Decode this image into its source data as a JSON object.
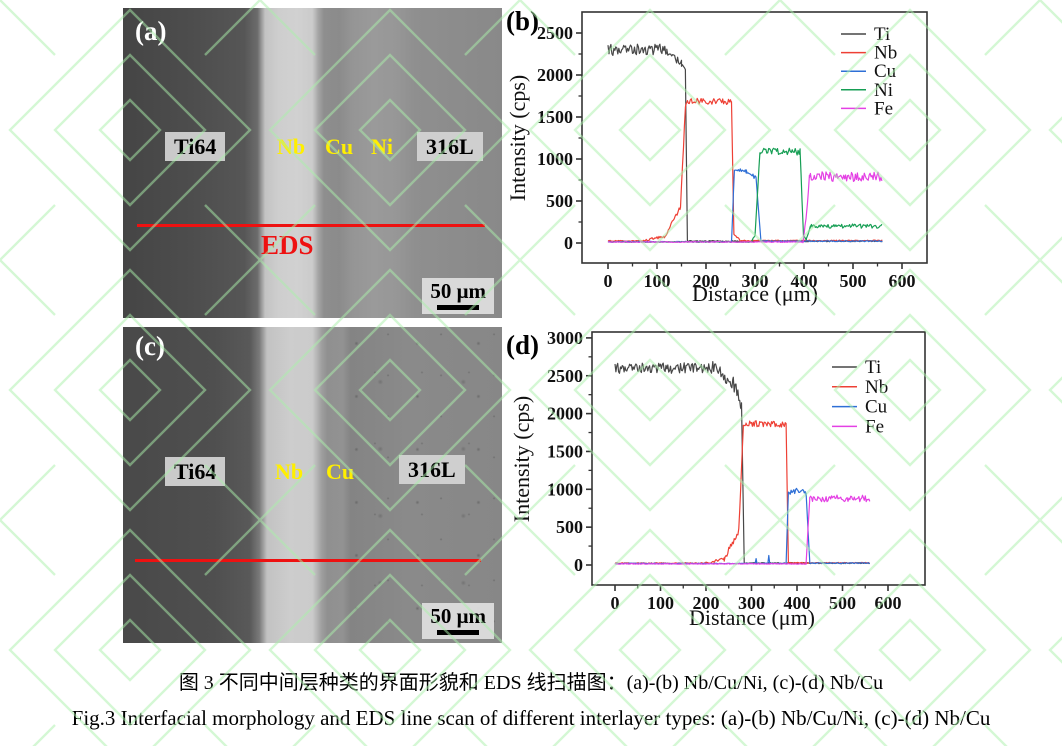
{
  "figure": {
    "panels": {
      "a": {
        "letter": "(a)",
        "region_labels": [
          "Ti64",
          "Nb",
          "Cu",
          "Ni",
          "316L"
        ],
        "eds_label": "EDS",
        "scale_label": "50 μm"
      },
      "c": {
        "letter": "(c)",
        "region_labels": [
          "Ti64",
          "Nb",
          "Cu",
          "316L"
        ],
        "scale_label": "50 μm"
      }
    },
    "captions": {
      "zh": "图 3 不同中间层种类的界面形貌和 EDS 线扫描图：(a)-(b) Nb/Cu/Ni, (c)-(d) Nb/Cu",
      "en": "Fig.3 Interfacial morphology and EDS line scan of different interlayer types: (a)-(b) Nb/Cu/Ni, (c)-(d) Nb/Cu"
    },
    "colors": {
      "eds_line": "#ee1111",
      "layer_label": "#ffef00",
      "watermark": "#abf0ab",
      "axis": "#333333"
    }
  },
  "chart_data": [
    {
      "panel_label": "(b)",
      "type": "line",
      "xlabel": "Distance (μm)",
      "ylabel": "Intensity (cps)",
      "xlim": [
        0,
        600
      ],
      "ylim": [
        0,
        2500
      ],
      "grid": false,
      "legend_position": "top-right",
      "xticks": [
        0,
        100,
        200,
        300,
        400,
        500,
        600
      ],
      "xticks_minor": [
        50,
        150,
        250,
        350,
        450,
        550
      ],
      "yticks": [
        0,
        500,
        1000,
        1500,
        2000,
        2500
      ],
      "yticks_minor": [
        250,
        750,
        1250,
        1750,
        2250
      ],
      "series": [
        {
          "name": "Ti",
          "color": "#474747",
          "segments": [
            [
              0,
              120,
              2300,
              2300,
              70
            ],
            [
              120,
              150,
              2290,
              2130,
              45
            ],
            [
              150,
              158,
              2130,
              2040,
              30
            ],
            [
              158,
              162,
              2040,
              25,
              5
            ],
            [
              162,
              560,
              22,
              22,
              7
            ]
          ]
        },
        {
          "name": "Nb",
          "color": "#ee4035",
          "segments": [
            [
              0,
              70,
              25,
              25,
              6
            ],
            [
              70,
              115,
              25,
              80,
              14
            ],
            [
              115,
              148,
              80,
              430,
              30
            ],
            [
              148,
              158,
              430,
              1620,
              20
            ],
            [
              158,
              162,
              1620,
              1690,
              15
            ],
            [
              162,
              252,
              1690,
              1680,
              35
            ],
            [
              252,
              257,
              1680,
              110,
              10
            ],
            [
              257,
              270,
              110,
              30,
              8
            ],
            [
              270,
              560,
              28,
              28,
              7
            ]
          ]
        },
        {
          "name": "Cu",
          "color": "#2e6fd6",
          "segments": [
            [
              0,
              252,
              15,
              15,
              5
            ],
            [
              252,
              258,
              15,
              870,
              10
            ],
            [
              258,
              282,
              870,
              850,
              25
            ],
            [
              282,
              302,
              850,
              780,
              28
            ],
            [
              302,
              312,
              780,
              35,
              8
            ],
            [
              312,
              560,
              22,
              22,
              6
            ]
          ]
        },
        {
          "name": "Ni",
          "color": "#169e54",
          "segments": [
            [
              0,
              292,
              12,
              12,
              4
            ],
            [
              292,
              300,
              12,
              90,
              10
            ],
            [
              300,
              310,
              90,
              1070,
              18
            ],
            [
              310,
              392,
              1090,
              1090,
              42
            ],
            [
              392,
              399,
              1090,
              90,
              12
            ],
            [
              399,
              405,
              90,
              45,
              8
            ],
            [
              405,
              413,
              45,
              195,
              14
            ],
            [
              413,
              560,
              200,
              200,
              26
            ]
          ]
        },
        {
          "name": "Fe",
          "color": "#e440e4",
          "segments": [
            [
              0,
              398,
              12,
              12,
              5
            ],
            [
              398,
              405,
              12,
              330,
              18
            ],
            [
              405,
              411,
              330,
              800,
              25
            ],
            [
              411,
              560,
              790,
              790,
              58
            ]
          ]
        }
      ]
    },
    {
      "panel_label": "(d)",
      "type": "line",
      "xlabel": "Distance (μm)",
      "ylabel": "Intensity (cps)",
      "xlim": [
        0,
        600
      ],
      "ylim": [
        0,
        3000
      ],
      "grid": false,
      "legend_position": "top-right",
      "xticks": [
        0,
        100,
        200,
        300,
        400,
        500,
        600
      ],
      "xticks_minor": [
        50,
        150,
        250,
        350,
        450,
        550
      ],
      "yticks": [
        0,
        500,
        1000,
        1500,
        2000,
        2500,
        3000
      ],
      "yticks_minor": [
        250,
        750,
        1250,
        1750,
        2250,
        2750
      ],
      "series": [
        {
          "name": "Ti",
          "color": "#474747",
          "segments": [
            [
              0,
              215,
              2600,
              2600,
              70
            ],
            [
              215,
              260,
              2600,
              2400,
              90
            ],
            [
              260,
              278,
              2400,
              2150,
              110
            ],
            [
              278,
              284,
              2150,
              30,
              10
            ],
            [
              284,
              560,
              25,
              25,
              7
            ]
          ]
        },
        {
          "name": "Nb",
          "color": "#ee4035",
          "segments": [
            [
              0,
              200,
              25,
              25,
              6
            ],
            [
              200,
              240,
              25,
              80,
              16
            ],
            [
              240,
              272,
              80,
              460,
              40
            ],
            [
              272,
              282,
              460,
              1830,
              25
            ],
            [
              282,
              288,
              1830,
              1870,
              20
            ],
            [
              288,
              376,
              1870,
              1860,
              42
            ],
            [
              376,
              381,
              1860,
              50,
              10
            ],
            [
              381,
              560,
              28,
              28,
              6
            ]
          ]
        },
        {
          "name": "Cu",
          "color": "#2e6fd6",
          "spikes": [
            {
              "x": 310,
              "y": 85
            },
            {
              "x": 338,
              "y": 125
            }
          ],
          "segments": [
            [
              0,
              376,
              20,
              20,
              6
            ],
            [
              376,
              381,
              20,
              950,
              12
            ],
            [
              381,
              402,
              950,
              990,
              35
            ],
            [
              402,
              420,
              990,
              945,
              32
            ],
            [
              420,
              428,
              945,
              55,
              10
            ],
            [
              428,
              560,
              25,
              25,
              6
            ]
          ]
        },
        {
          "name": "Fe",
          "color": "#e440e4",
          "segments": [
            [
              0,
              420,
              15,
              15,
              5
            ],
            [
              420,
              428,
              15,
              870,
              22
            ],
            [
              428,
              560,
              880,
              880,
              45
            ]
          ]
        }
      ]
    }
  ]
}
